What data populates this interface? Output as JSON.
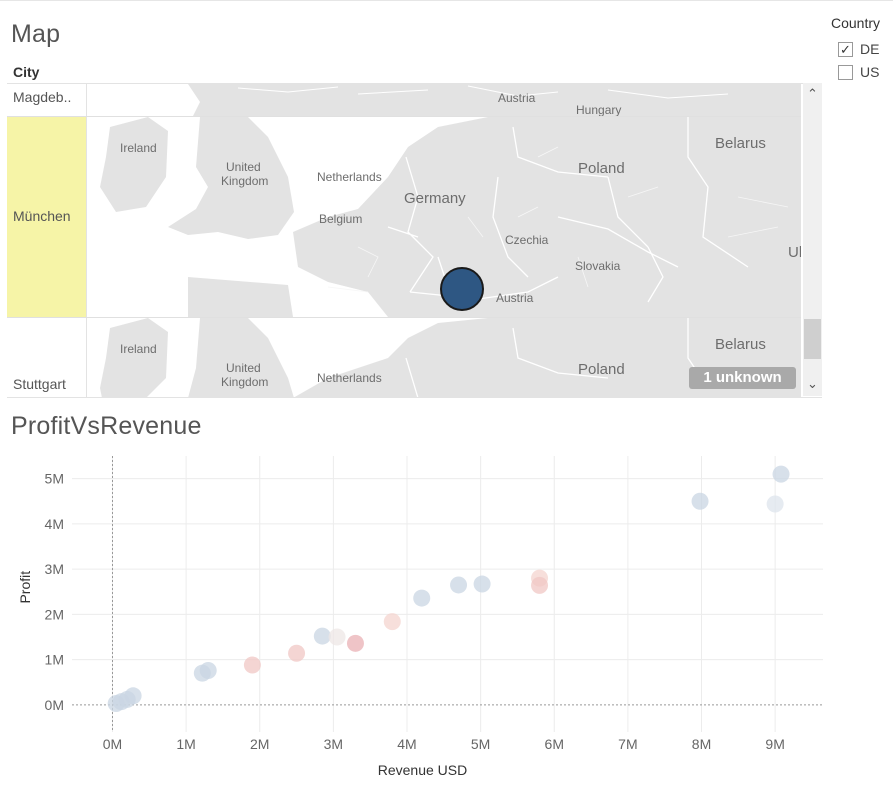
{
  "map": {
    "title": "Map",
    "column_header": "City",
    "rows": [
      {
        "city": "Magdeb..",
        "selected": false
      },
      {
        "city": "München",
        "selected": true
      },
      {
        "city": "Stuttgart",
        "selected": false
      }
    ],
    "labels": {
      "austria": "Austria",
      "hungary": "Hungary",
      "ireland": "Ireland",
      "united": "United",
      "kingdom": "Kingdom",
      "netherlands": "Netherlands",
      "belgium": "Belgium",
      "germany": "Germany",
      "czechia": "Czechia",
      "slovakia": "Slovakia",
      "poland": "Poland",
      "belarus": "Belarus",
      "uk_edge": "Uk"
    },
    "unknown_badge": "1 unknown",
    "marker_color": "#2e5783",
    "scroll_up_glyph": "⌃",
    "scroll_down_glyph": "⌄"
  },
  "filter": {
    "title": "Country",
    "options": [
      {
        "label": "DE",
        "checked": true,
        "glyph": "✓"
      },
      {
        "label": "US",
        "checked": false,
        "glyph": ""
      }
    ]
  },
  "scatter": {
    "title": "ProfitVsRevenue"
  },
  "chart_data": {
    "type": "scatter",
    "title": "ProfitVsRevenue",
    "xlabel": "Revenue USD",
    "ylabel": "Profit",
    "x_ticks": [
      "0M",
      "1M",
      "2M",
      "3M",
      "4M",
      "5M",
      "6M",
      "7M",
      "8M",
      "9M"
    ],
    "y_ticks": [
      "0M",
      "1M",
      "2M",
      "3M",
      "4M",
      "5M"
    ],
    "xlim": [
      -0.55,
      9.65
    ],
    "ylim": [
      -0.6,
      5.5
    ],
    "grid": true,
    "points": [
      {
        "x": 0.05,
        "y": 0.03,
        "color": "#c9d6e3",
        "opacity": 0.75
      },
      {
        "x": 0.12,
        "y": 0.07,
        "color": "#c9d6e3",
        "opacity": 0.75
      },
      {
        "x": 0.2,
        "y": 0.12,
        "color": "#c9d6e3",
        "opacity": 0.75
      },
      {
        "x": 0.28,
        "y": 0.2,
        "color": "#c9d6e3",
        "opacity": 0.75
      },
      {
        "x": 1.22,
        "y": 0.7,
        "color": "#c9d6e3",
        "opacity": 0.75
      },
      {
        "x": 1.3,
        "y": 0.76,
        "color": "#c9d6e3",
        "opacity": 0.75
      },
      {
        "x": 1.9,
        "y": 0.88,
        "color": "#f0c7c4",
        "opacity": 0.75
      },
      {
        "x": 2.5,
        "y": 1.14,
        "color": "#f0c7c4",
        "opacity": 0.75
      },
      {
        "x": 2.85,
        "y": 1.52,
        "color": "#c9d6e3",
        "opacity": 0.75
      },
      {
        "x": 3.05,
        "y": 1.5,
        "color": "#ede7e6",
        "opacity": 0.75
      },
      {
        "x": 3.3,
        "y": 1.36,
        "color": "#e9b0b4",
        "opacity": 0.75
      },
      {
        "x": 3.8,
        "y": 1.84,
        "color": "#f4d4cf",
        "opacity": 0.75
      },
      {
        "x": 4.2,
        "y": 2.36,
        "color": "#c9d6e3",
        "opacity": 0.75
      },
      {
        "x": 4.7,
        "y": 2.65,
        "color": "#c9d6e3",
        "opacity": 0.75
      },
      {
        "x": 5.02,
        "y": 2.67,
        "color": "#c9d6e3",
        "opacity": 0.75
      },
      {
        "x": 5.8,
        "y": 2.8,
        "color": "#f4d4cf",
        "opacity": 0.75
      },
      {
        "x": 5.8,
        "y": 2.64,
        "color": "#f0c7c4",
        "opacity": 0.75
      },
      {
        "x": 7.98,
        "y": 4.5,
        "color": "#c9d6e3",
        "opacity": 0.75
      },
      {
        "x": 9.0,
        "y": 4.44,
        "color": "#dde4ec",
        "opacity": 0.75
      },
      {
        "x": 9.08,
        "y": 5.1,
        "color": "#c9d6e3",
        "opacity": 0.75
      }
    ]
  }
}
